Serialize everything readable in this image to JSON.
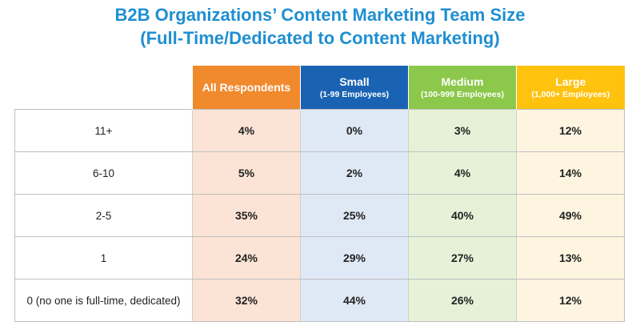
{
  "title": {
    "line1": "B2B Organizations’ Content Marketing Team Size",
    "line2": "(Full-Time/Dedicated to Content Marketing)"
  },
  "colors": {
    "title": "#1f8fd1",
    "headers": [
      "#f08a2c",
      "#1a63b3",
      "#8cc84b",
      "#ffc20e"
    ]
  },
  "chart_data": {
    "type": "table",
    "title": "B2B Organizations’ Content Marketing Team Size (Full-Time/Dedicated to Content Marketing)",
    "columns": [
      {
        "name": "All Respondents",
        "sub": ""
      },
      {
        "name": "Small",
        "sub": "(1-99 Employees)"
      },
      {
        "name": "Medium",
        "sub": "(100-999 Employees)"
      },
      {
        "name": "Large",
        "sub": "(1,000+ Employees)"
      }
    ],
    "rows": [
      {
        "label": "11+",
        "values": [
          "4%",
          "0%",
          "3%",
          "12%"
        ]
      },
      {
        "label": "6-10",
        "values": [
          "5%",
          "2%",
          "4%",
          "14%"
        ]
      },
      {
        "label": "2-5",
        "values": [
          "35%",
          "25%",
          "40%",
          "49%"
        ]
      },
      {
        "label": "1",
        "values": [
          "24%",
          "29%",
          "27%",
          "13%"
        ]
      },
      {
        "label": "0 (no one is full-time, dedicated)",
        "values": [
          "32%",
          "44%",
          "26%",
          "12%"
        ]
      }
    ]
  }
}
